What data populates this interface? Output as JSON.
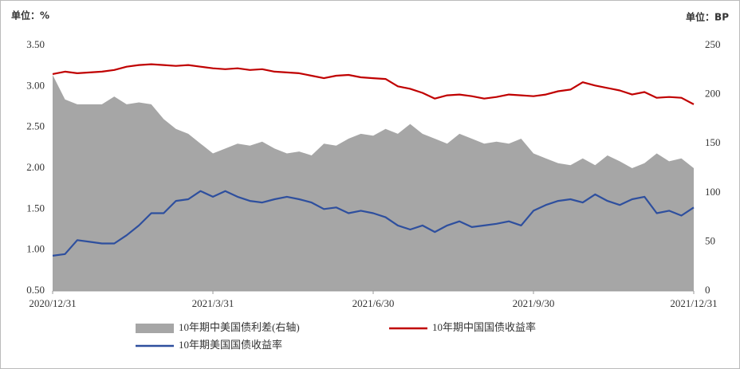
{
  "chart_data": {
    "type": "line",
    "y_unit_label": "单位：%",
    "y2_unit_label": "单位：BP",
    "categories": [
      "2020/12/31",
      null,
      null,
      null,
      null,
      null,
      null,
      null,
      null,
      null,
      null,
      null,
      null,
      "2021/3/31",
      null,
      null,
      null,
      null,
      null,
      null,
      null,
      null,
      null,
      null,
      null,
      null,
      "2021/6/30",
      null,
      null,
      null,
      null,
      null,
      null,
      null,
      null,
      null,
      null,
      null,
      null,
      "2021/9/30",
      null,
      null,
      null,
      null,
      null,
      null,
      null,
      null,
      null,
      null,
      null,
      null,
      "2021/12/31"
    ],
    "series": [
      {
        "name": "10年期中美国债利差(右轴)",
        "type": "area",
        "axis": "y2",
        "color": "#a6a6a6",
        "values": [
          220,
          195,
          190,
          190,
          190,
          198,
          190,
          192,
          190,
          175,
          165,
          160,
          150,
          140,
          145,
          150,
          148,
          152,
          145,
          140,
          142,
          138,
          150,
          148,
          155,
          160,
          158,
          165,
          160,
          170,
          160,
          155,
          150,
          160,
          155,
          150,
          152,
          150,
          155,
          140,
          135,
          130,
          128,
          135,
          128,
          138,
          132,
          125,
          130,
          140,
          132,
          135,
          125
        ]
      },
      {
        "name": "10年期中国国债收益率",
        "type": "line",
        "color": "#c00000",
        "values": [
          3.15,
          3.18,
          3.16,
          3.17,
          3.18,
          3.2,
          3.24,
          3.26,
          3.27,
          3.26,
          3.25,
          3.26,
          3.24,
          3.22,
          3.21,
          3.22,
          3.2,
          3.21,
          3.18,
          3.17,
          3.16,
          3.13,
          3.1,
          3.13,
          3.14,
          3.11,
          3.1,
          3.09,
          3.0,
          2.97,
          2.92,
          2.85,
          2.89,
          2.9,
          2.88,
          2.85,
          2.87,
          2.9,
          2.89,
          2.88,
          2.9,
          2.94,
          2.96,
          3.05,
          3.01,
          2.98,
          2.95,
          2.9,
          2.93,
          2.86,
          2.87,
          2.86,
          2.78
        ]
      },
      {
        "name": "10年期美国国债收益率",
        "type": "line",
        "color": "#2e4f9e",
        "values": [
          0.93,
          0.95,
          1.12,
          1.1,
          1.08,
          1.08,
          1.18,
          1.3,
          1.45,
          1.45,
          1.6,
          1.62,
          1.72,
          1.65,
          1.72,
          1.65,
          1.6,
          1.58,
          1.62,
          1.65,
          1.62,
          1.58,
          1.5,
          1.52,
          1.45,
          1.48,
          1.45,
          1.4,
          1.3,
          1.25,
          1.3,
          1.22,
          1.3,
          1.35,
          1.28,
          1.3,
          1.32,
          1.35,
          1.3,
          1.48,
          1.55,
          1.6,
          1.62,
          1.58,
          1.68,
          1.6,
          1.55,
          1.62,
          1.65,
          1.45,
          1.48,
          1.42,
          1.52
        ]
      }
    ],
    "ylim": [
      0.5,
      3.5
    ],
    "yticks": [
      {
        "value": 0.5,
        "label": "0.50"
      },
      {
        "value": 1,
        "label": "1.00"
      },
      {
        "value": 1.5,
        "label": "1.50"
      },
      {
        "value": 2,
        "label": "2.00"
      },
      {
        "value": 2.5,
        "label": "2.50"
      },
      {
        "value": 3,
        "label": "3.00"
      },
      {
        "value": 3.5,
        "label": "3.50"
      }
    ],
    "y2lim": [
      0,
      250
    ],
    "y2ticks": [
      0,
      50,
      100,
      150,
      200,
      250
    ],
    "legend": "bottom",
    "grid": false
  }
}
